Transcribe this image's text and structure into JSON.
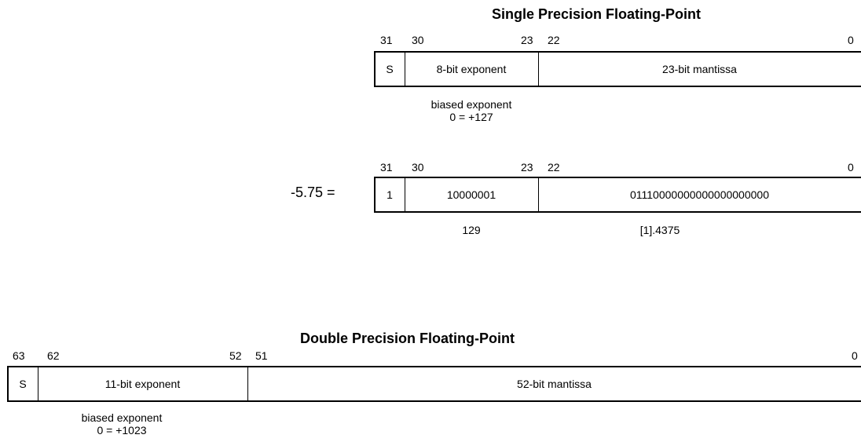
{
  "single": {
    "title": "Single Precision Floating-Point",
    "bits": {
      "b31": "31",
      "b30": "30",
      "b23": "23",
      "b22": "22",
      "b0": "0"
    },
    "fields": {
      "sign": "S",
      "exponent": "8-bit exponent",
      "mantissa": "23-bit mantissa"
    },
    "note_line1": "biased exponent",
    "note_line2": "0 = +127"
  },
  "example": {
    "value_label": "-5.75 =",
    "bits": {
      "b31": "31",
      "b30": "30",
      "b23": "23",
      "b22": "22",
      "b0": "0"
    },
    "fields": {
      "sign": "1",
      "exponent": "10000001",
      "mantissa": "01110000000000000000000"
    },
    "exponent_decimal": "129",
    "mantissa_decimal": "[1].4375"
  },
  "double": {
    "title": "Double Precision Floating-Point",
    "bits": {
      "b63": "63",
      "b62": "62",
      "b52": "52",
      "b51": "51",
      "b0": "0"
    },
    "fields": {
      "sign": "S",
      "exponent": "11-bit exponent",
      "mantissa": "52-bit mantissa"
    },
    "note_line1": "biased exponent",
    "note_line2": "0 = +1023"
  }
}
